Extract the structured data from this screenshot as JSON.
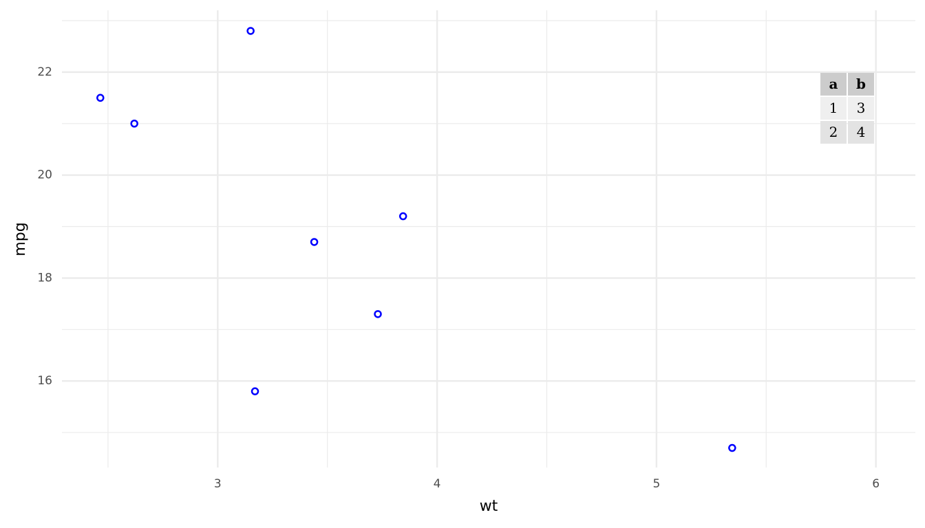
{
  "chart_data": {
    "type": "scatter",
    "x_label": "wt",
    "y_label": "mpg",
    "series": [
      {
        "color": "#0000ff",
        "x": [
          2.465,
          2.62,
          3.15,
          3.17,
          3.44,
          3.73,
          3.845,
          5.345
        ],
        "values": [
          21.5,
          21.0,
          22.8,
          15.8,
          18.7,
          17.3,
          19.2,
          14.7
        ]
      }
    ],
    "xlim": [
      2.29,
      6.18
    ],
    "ylim": [
      14.32,
      23.2
    ],
    "xticks": [
      3,
      4,
      5,
      6
    ],
    "yticks": [
      16,
      18,
      20,
      22
    ],
    "xminor": [
      2.5,
      3.5,
      4.5,
      5.5
    ],
    "yminor": [
      15,
      17,
      19,
      21,
      23
    ],
    "grid": true,
    "table": {
      "columns": [
        "a",
        "b"
      ],
      "rows": [
        [
          1,
          3
        ],
        [
          2,
          4
        ]
      ]
    }
  }
}
